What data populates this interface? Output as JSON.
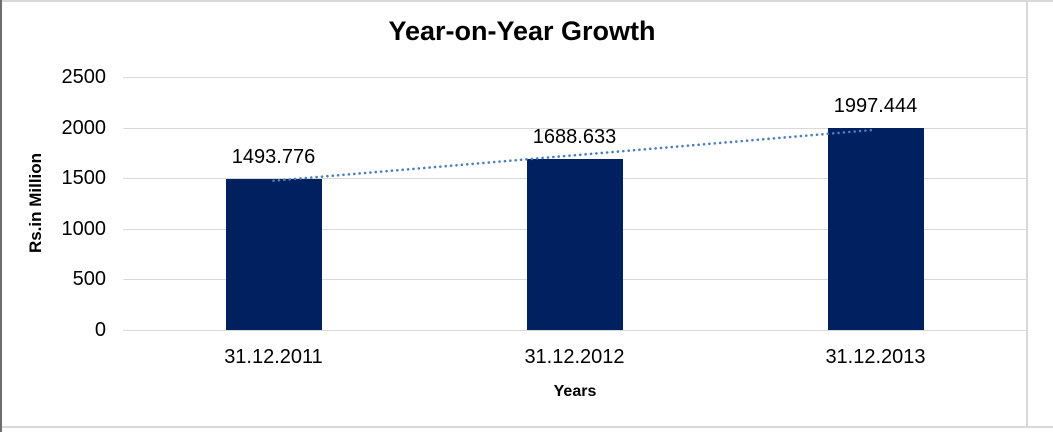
{
  "frame": {
    "background": "#ffffff",
    "border_top_color": "#d9d9d9",
    "border_bottom_color": "#d9d9d9",
    "border_right_color": "#d9d9d9",
    "border_left_color": "#6e6e6e"
  },
  "chart_data": {
    "type": "bar",
    "title": "Year-on-Year Growth",
    "categories": [
      "31.12.2011",
      "31.12.2012",
      "31.12.2013"
    ],
    "values": [
      1493.776,
      1688.633,
      1997.444
    ],
    "data_labels": [
      "1493.776",
      "1688.633",
      "1997.444"
    ],
    "xlabel": "Years",
    "ylabel": "Rs.in Million",
    "ylim": [
      0,
      2500
    ],
    "yticks": [
      0,
      500,
      1000,
      1500,
      2000,
      2500
    ],
    "grid": true,
    "legend": "none",
    "bar_color": "#002060",
    "gridline_color": "#d9d9d9",
    "text_color": "#000000",
    "trendline": {
      "type": "linear",
      "style": "dotted",
      "color": "#4a7ebb"
    }
  }
}
